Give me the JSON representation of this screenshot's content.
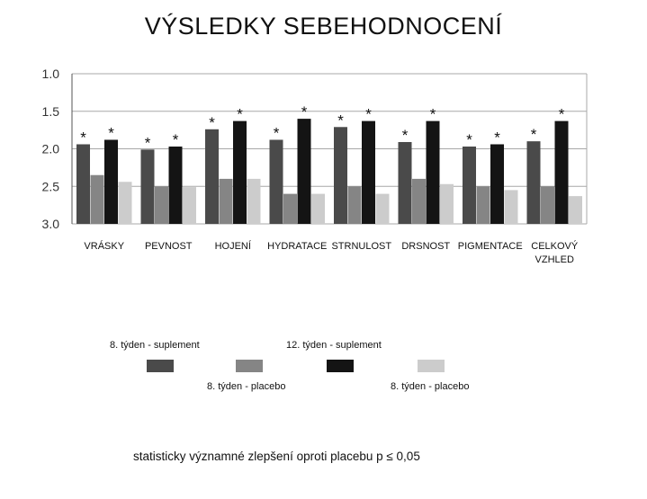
{
  "title": "VÝSLEDKY SEBEHODNOCENÍ",
  "chart_data": {
    "type": "bar",
    "ylim": [
      1.0,
      3.0
    ],
    "y_inverted": true,
    "yticks": [
      "1.0",
      "1.5",
      "2.0",
      "2.5",
      "3.0"
    ],
    "grid": true,
    "categories": [
      "VRÁSKY",
      "PEVNOST",
      "HOJENÍ",
      "HYDRATACE",
      "STRNULOST",
      "DRSNOST",
      "PIGMENTACE",
      "CELKOVÝ VZHLED"
    ],
    "category_lines": [
      [
        "VRÁSKY"
      ],
      [
        "PEVNOST"
      ],
      [
        "HOJENÍ"
      ],
      [
        "HYDRATACE"
      ],
      [
        "STRNULOST"
      ],
      [
        "DRSNOST"
      ],
      [
        "PIGMENTACE"
      ],
      [
        "CELKOVÝ",
        "VZHLED"
      ]
    ],
    "series": [
      {
        "name": "8. týden - suplement",
        "color": "#4a4a4a",
        "values": [
          1.94,
          2.01,
          1.74,
          1.88,
          1.71,
          1.91,
          1.97,
          1.9
        ],
        "significant": [
          true,
          true,
          true,
          true,
          true,
          true,
          true,
          true
        ]
      },
      {
        "name": "8. týden - placebo",
        "color": "#858585",
        "values": [
          2.35,
          2.5,
          2.4,
          2.6,
          2.5,
          2.4,
          2.5,
          2.5
        ],
        "significant": [
          false,
          false,
          false,
          false,
          false,
          false,
          false,
          false
        ]
      },
      {
        "name": "12. týden - suplement",
        "color": "#141414",
        "values": [
          1.88,
          1.97,
          1.63,
          1.6,
          1.63,
          1.63,
          1.94,
          1.63
        ],
        "significant": [
          true,
          true,
          true,
          true,
          true,
          true,
          true,
          true
        ]
      },
      {
        "name": "8. týden - placebo",
        "color": "#cccccc",
        "values": [
          2.44,
          2.51,
          2.4,
          2.6,
          2.6,
          2.47,
          2.55,
          2.63
        ],
        "significant": [
          false,
          false,
          false,
          false,
          false,
          false,
          false,
          false
        ]
      }
    ],
    "significance_marker": "*"
  },
  "legend": [
    {
      "label": "8. týden - suplement",
      "color": "#4a4a4a"
    },
    {
      "label": "8. týden - placebo",
      "color": "#858585"
    },
    {
      "label": "12. týden - suplement",
      "color": "#141414"
    },
    {
      "label": "8. týden - placebo",
      "color": "#cccccc"
    }
  ],
  "note": "statisticky významné zlepšení oproti placebu p ≤ 0,05"
}
